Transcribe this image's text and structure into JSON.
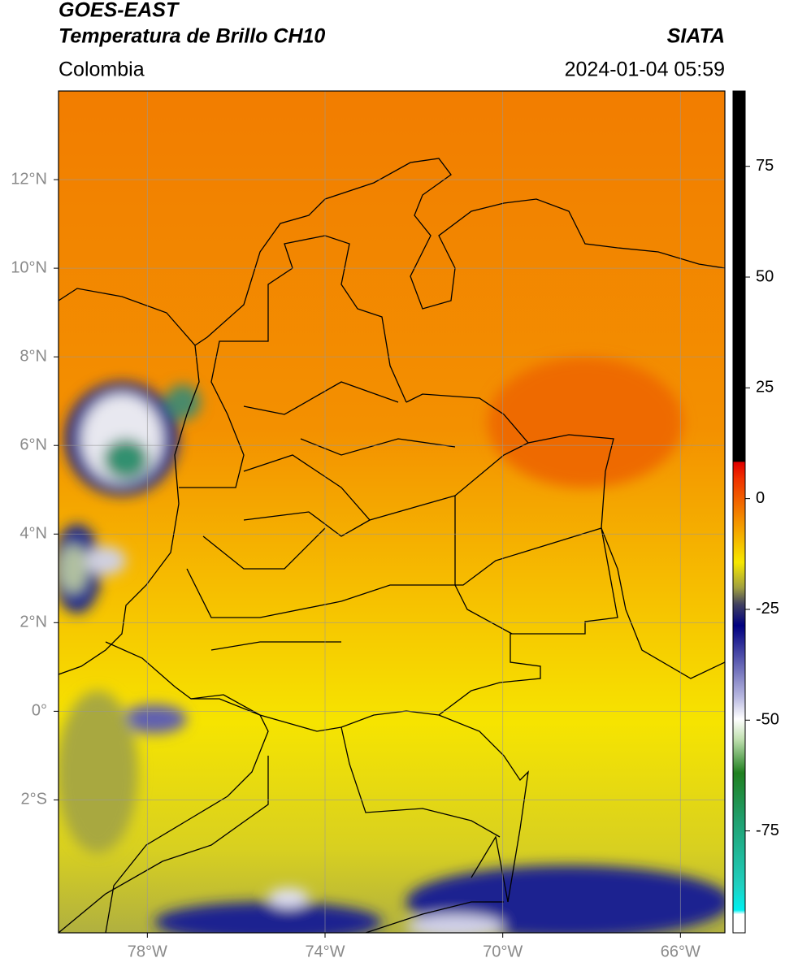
{
  "header": {
    "title": "GOES-EAST",
    "subtitle": "Temperatura de Brillo CH10",
    "source": "SIATA",
    "region": "Colombia",
    "datetime": "2024-01-04 05:59"
  },
  "chart_data": {
    "type": "map",
    "xlim": [
      -80,
      -65
    ],
    "ylim": [
      -5,
      14
    ],
    "xticks": [
      {
        "value": -78,
        "label": "78°W"
      },
      {
        "value": -74,
        "label": "74°W"
      },
      {
        "value": -70,
        "label": "70°W"
      },
      {
        "value": -66,
        "label": "66°W"
      }
    ],
    "yticks": [
      {
        "value": 12,
        "label": "12°N"
      },
      {
        "value": 10,
        "label": "10°N"
      },
      {
        "value": 8,
        "label": "8°N"
      },
      {
        "value": 6,
        "label": "6°N"
      },
      {
        "value": 4,
        "label": "4°N"
      },
      {
        "value": 2,
        "label": "2°N"
      },
      {
        "value": 0,
        "label": "0°"
      },
      {
        "value": -2,
        "label": "2°S"
      }
    ],
    "grid": true,
    "colorbar": {
      "lim": [
        -98,
        92
      ],
      "ticks": [
        75,
        50,
        25,
        0,
        -25,
        -50,
        -75
      ]
    }
  }
}
